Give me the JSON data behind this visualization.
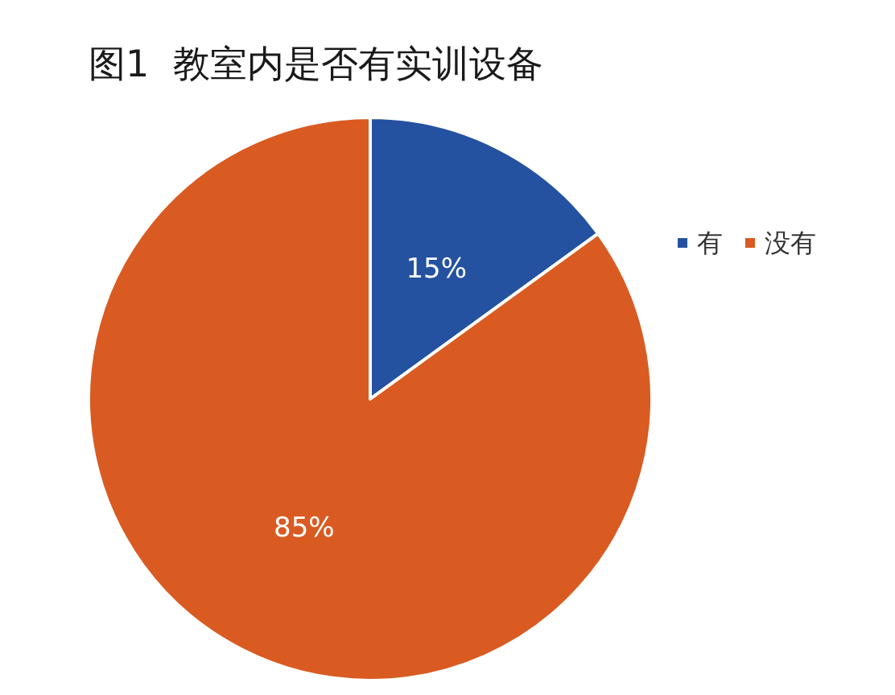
{
  "chart_data": {
    "type": "pie",
    "title": "图1  教室内是否有实训设备",
    "categories": [
      "有",
      "没有"
    ],
    "values": [
      15,
      85
    ],
    "colors": [
      "#2452a0",
      "#d95b22"
    ],
    "value_labels": [
      "15%",
      "85%"
    ],
    "legend": "top right"
  }
}
